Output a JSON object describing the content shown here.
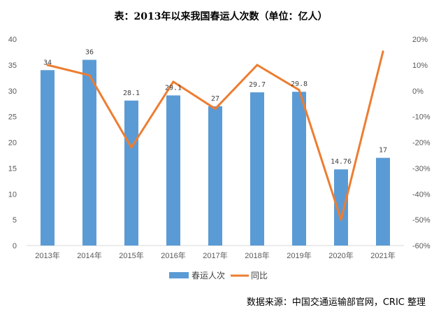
{
  "chart_data": {
    "type": "bar",
    "title": "表：2013年以来我国春运人次数（单位：亿人）",
    "categories": [
      "2013年",
      "2014年",
      "2015年",
      "2016年",
      "2017年",
      "2018年",
      "2019年",
      "2020年",
      "2021年"
    ],
    "series": [
      {
        "name": "春运人次",
        "type": "bar",
        "axis": "left",
        "color": "#5B9BD5",
        "values": [
          34,
          36,
          28.1,
          29.1,
          27,
          29.7,
          29.8,
          14.76,
          17
        ],
        "labels": [
          "34",
          "36",
          "28.1",
          "29.1",
          "27",
          "29.7",
          "29.8",
          "14.76",
          "17"
        ]
      },
      {
        "name": "同比",
        "type": "line",
        "axis": "right",
        "color": "#ED7D31",
        "values": [
          10,
          6,
          -22,
          3.5,
          -7,
          10,
          0.3,
          -50,
          15.2
        ]
      }
    ],
    "y_left": {
      "min": 0,
      "max": 40,
      "ticks": [
        "0",
        "5",
        "10",
        "15",
        "20",
        "25",
        "30",
        "35",
        "40"
      ]
    },
    "y_right": {
      "min": -60,
      "max": 20,
      "ticks": [
        "-60%",
        "-50%",
        "-40%",
        "-30%",
        "-20%",
        "-10%",
        "0%",
        "10%",
        "20%"
      ]
    },
    "grid": false,
    "legend_position": "bottom"
  },
  "source": "数据来源：中国交通运输部官网，CRIC 整理"
}
